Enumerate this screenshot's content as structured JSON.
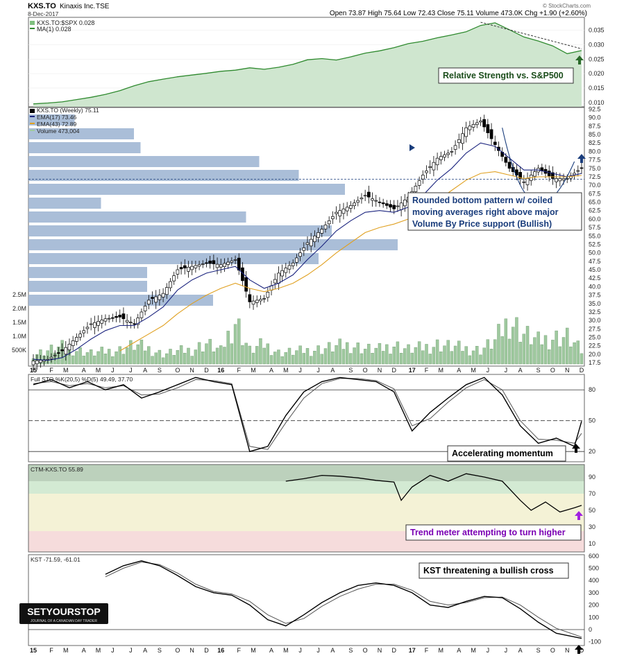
{
  "header": {
    "ticker": "KXS.TO",
    "company": "Kinaxis Inc.",
    "exchange": "TSE",
    "date": "8-Dec-2017",
    "ohlc": "Open 73.87  High 75.64  Low 72.43  Close 75.11  Volume 473.0K  Chg +1.90 (+2.60%)",
    "watermark": "© StockCharts.com"
  },
  "colors": {
    "rs_fill": "#cfe6cf",
    "rs_line": "#2f8a2f",
    "ema17": "#1a237e",
    "ema43": "#e0a020",
    "volume": "#9fc99f",
    "vbp": "#9bb3d1",
    "ctm_zone1": "#bcd1bc",
    "ctm_zone2": "#d3ead3",
    "ctm_zone3": "#f4f2d6",
    "ctm_zone4": "#f6dcdc"
  },
  "chart_data": [
    {
      "type": "area",
      "name": "relative-strength",
      "legend": [
        "KXS.TO:$SPX 0.028",
        "MA(1) 0.028"
      ],
      "y_ticks": [
        "0.035",
        "0.030",
        "0.025",
        "0.020",
        "0.015",
        "0.010"
      ],
      "ylim": [
        0.0085,
        0.0395
      ],
      "x": [
        0,
        4,
        8,
        12,
        16,
        20,
        24,
        28,
        32,
        36,
        40,
        44,
        48,
        52,
        56,
        60,
        64,
        68,
        72,
        76,
        80,
        84,
        88,
        92,
        96,
        100,
        104,
        108,
        112,
        116,
        120,
        124,
        128,
        132,
        136,
        140,
        144,
        148,
        152
      ],
      "values": [
        0.0095,
        0.0098,
        0.0102,
        0.011,
        0.0118,
        0.0128,
        0.0141,
        0.0158,
        0.0172,
        0.0181,
        0.0189,
        0.0195,
        0.0201,
        0.0208,
        0.0212,
        0.022,
        0.0215,
        0.0222,
        0.0232,
        0.0248,
        0.0252,
        0.0247,
        0.0258,
        0.0271,
        0.0279,
        0.029,
        0.0304,
        0.0312,
        0.0324,
        0.0334,
        0.0345,
        0.0367,
        0.0376,
        0.0352,
        0.0327,
        0.0313,
        0.0296,
        0.0269,
        0.028
      ],
      "annotation": "Relative Strength vs. S&P500"
    },
    {
      "type": "candlestick",
      "name": "price",
      "legend": [
        "KXS.TO (Weekly) 75.11",
        "EMA(17) 73.46",
        "EMA(43) 72.89",
        "Volume 473,004"
      ],
      "y_ticks": [
        "92.5",
        "90.0",
        "87.5",
        "85.0",
        "82.5",
        "80.0",
        "77.5",
        "75.0",
        "72.5",
        "70.0",
        "67.5",
        "65.0",
        "62.5",
        "60.0",
        "57.5",
        "55.0",
        "52.5",
        "50.0",
        "47.5",
        "45.0",
        "42.5",
        "40.0",
        "37.5",
        "35.0",
        "32.5",
        "30.0",
        "27.5",
        "25.0",
        "22.5",
        "20.0",
        "17.5"
      ],
      "volume_ticks": [
        "2.5M",
        "2.0M",
        "1.5M",
        "1.0M",
        "500K"
      ],
      "ylim": [
        16.5,
        93
      ],
      "x": [
        0,
        4,
        8,
        12,
        16,
        20,
        24,
        28,
        32,
        36,
        40,
        44,
        48,
        52,
        56,
        60,
        64,
        68,
        72,
        76,
        80,
        84,
        88,
        92,
        96,
        100,
        104,
        108,
        112,
        116,
        120,
        124,
        128,
        132,
        136,
        140,
        144,
        148,
        152
      ],
      "close": [
        18.0,
        18.5,
        21.0,
        25.0,
        29.0,
        30.5,
        31.0,
        29.0,
        36.0,
        38.0,
        45.0,
        46.0,
        47.0,
        46.5,
        48.0,
        35.5,
        36.5,
        44.0,
        47.0,
        53.0,
        57.0,
        62.0,
        64.0,
        67.0,
        65.0,
        63.0,
        66.5,
        73.0,
        78.0,
        80.0,
        87.0,
        89.0,
        82.0,
        75.0,
        71.0,
        75.0,
        72.0,
        72.0,
        75.1
      ],
      "ema17": [
        18.5,
        18.2,
        19.0,
        21.5,
        24.5,
        27.0,
        28.5,
        28.5,
        31.0,
        34.0,
        39.0,
        42.0,
        44.0,
        45.0,
        46.0,
        42.0,
        39.5,
        41.0,
        43.5,
        48.0,
        52.0,
        56.5,
        59.5,
        62.0,
        62.5,
        62.0,
        63.5,
        67.0,
        71.5,
        75.0,
        79.5,
        82.5,
        81.5,
        78.0,
        74.5,
        74.5,
        73.5,
        72.5,
        73.5
      ],
      "ema43_x": [
        24,
        28,
        32,
        36,
        40,
        44,
        48,
        52,
        56,
        60,
        64,
        68,
        72,
        76,
        80,
        84,
        88,
        92,
        96,
        100,
        104,
        108,
        112,
        116,
        120,
        124,
        128,
        132,
        136,
        140,
        144,
        148,
        152
      ],
      "ema43": [
        21.0,
        23.5,
        26.0,
        28.5,
        32.0,
        35.0,
        37.5,
        39.5,
        41.0,
        39.5,
        38.5,
        39.5,
        41.0,
        43.5,
        46.5,
        50.0,
        53.0,
        56.0,
        57.5,
        58.5,
        60.0,
        62.5,
        65.5,
        68.5,
        71.5,
        73.5,
        74.0,
        73.0,
        72.0,
        72.5,
        72.5,
        72.5,
        72.9
      ],
      "volume_k": [
        350,
        500,
        620,
        520,
        400,
        460,
        520,
        700,
        560,
        360,
        470,
        520,
        760,
        480,
        1620,
        500,
        720,
        420,
        450,
        500,
        560,
        640,
        700,
        560,
        540,
        700,
        540,
        600,
        720,
        640,
        560,
        520,
        840,
        1640,
        1120,
        840,
        980,
        1000,
        473
      ],
      "volume_ylim": [
        0,
        3000
      ],
      "vbp_k": [
        70,
        160,
        170,
        350,
        410,
        480,
        110,
        330,
        460,
        560,
        440,
        180,
        180,
        280
      ],
      "support_line": 71.8,
      "annotation": "Rounded bottom pattern w/ coiled moving averages right above major Volume By Price support (Bullish)"
    },
    {
      "type": "line",
      "name": "full-stochastics",
      "legend": "Full STO %K(20,5) %D(5) 49.49, 37.70",
      "y_ticks": [
        "80",
        "50",
        "20"
      ],
      "ylim": [
        10,
        95
      ],
      "x": [
        0,
        5,
        10,
        15,
        20,
        25,
        30,
        35,
        40,
        45,
        50,
        55,
        60,
        65,
        70,
        75,
        80,
        85,
        90,
        95,
        100,
        105,
        110,
        115,
        120,
        125,
        130,
        135,
        140,
        145,
        150,
        152
      ],
      "k": [
        85,
        90,
        82,
        88,
        80,
        85,
        72,
        78,
        85,
        92,
        88,
        85,
        20,
        25,
        55,
        78,
        88,
        92,
        90,
        88,
        78,
        40,
        58,
        72,
        85,
        92,
        75,
        45,
        28,
        33,
        25,
        49.49
      ],
      "d": [
        86,
        88,
        84,
        86,
        82,
        84,
        75,
        76,
        82,
        90,
        89,
        86,
        25,
        22,
        48,
        72,
        86,
        91,
        91,
        89,
        81,
        45,
        52,
        68,
        82,
        90,
        80,
        50,
        32,
        31,
        28,
        37.7
      ],
      "annotation": "Accelerating momentum"
    },
    {
      "type": "line",
      "name": "ctm-trend-meter",
      "legend": "CTM-KXS.TO 55.89",
      "y_ticks": [
        "90",
        "70",
        "50",
        "30",
        "10"
      ],
      "ylim": [
        0,
        105
      ],
      "x": [
        70,
        75,
        80,
        85,
        90,
        95,
        100,
        102,
        105,
        110,
        115,
        120,
        125,
        130,
        135,
        138,
        142,
        146,
        150,
        152
      ],
      "values": [
        85,
        88,
        92,
        91,
        89,
        86,
        84,
        62,
        78,
        92,
        85,
        94,
        90,
        85,
        62,
        50,
        60,
        48,
        53,
        55.89
      ],
      "annotation": "Trend meter attempting to turn higher"
    },
    {
      "type": "line",
      "name": "kst",
      "legend": "KST -71.59, -61.01",
      "y_ticks": [
        "600",
        "500",
        "400",
        "300",
        "200",
        "100",
        "0",
        "-100"
      ],
      "ylim": [
        -130,
        610
      ],
      "x": [
        20,
        25,
        30,
        35,
        40,
        45,
        50,
        55,
        60,
        65,
        70,
        75,
        80,
        85,
        90,
        95,
        100,
        105,
        110,
        115,
        120,
        125,
        130,
        135,
        140,
        145,
        150,
        152
      ],
      "kst": [
        450,
        520,
        560,
        520,
        440,
        350,
        300,
        280,
        200,
        80,
        30,
        120,
        220,
        300,
        360,
        380,
        360,
        300,
        200,
        180,
        230,
        270,
        260,
        170,
        60,
        -30,
        -60,
        -71.59
      ],
      "signal": [
        430,
        500,
        550,
        530,
        460,
        370,
        310,
        290,
        230,
        120,
        50,
        90,
        190,
        270,
        330,
        370,
        370,
        320,
        230,
        200,
        220,
        260,
        265,
        200,
        100,
        10,
        -40,
        -61.01
      ],
      "annotation": "KST threatening a bullish cross"
    }
  ],
  "x_axis": {
    "ticks": [
      {
        "label": "15",
        "bold": true,
        "pos": 0
      },
      {
        "label": "F",
        "pos": 5
      },
      {
        "label": "M",
        "pos": 9
      },
      {
        "label": "A",
        "pos": 14
      },
      {
        "label": "M",
        "pos": 18
      },
      {
        "label": "J",
        "pos": 22
      },
      {
        "label": "J",
        "pos": 27
      },
      {
        "label": "A",
        "pos": 31
      },
      {
        "label": "S",
        "pos": 35
      },
      {
        "label": "O",
        "pos": 40
      },
      {
        "label": "N",
        "pos": 44
      },
      {
        "label": "D",
        "pos": 48
      },
      {
        "label": "16",
        "bold": true,
        "pos": 52
      },
      {
        "label": "F",
        "pos": 57
      },
      {
        "label": "M",
        "pos": 61
      },
      {
        "label": "A",
        "pos": 66
      },
      {
        "label": "M",
        "pos": 70
      },
      {
        "label": "J",
        "pos": 74
      },
      {
        "label": "J",
        "pos": 79
      },
      {
        "label": "A",
        "pos": 83
      },
      {
        "label": "S",
        "pos": 88
      },
      {
        "label": "O",
        "pos": 92
      },
      {
        "label": "N",
        "pos": 96
      },
      {
        "label": "D",
        "pos": 100
      },
      {
        "label": "17",
        "bold": true,
        "pos": 105
      },
      {
        "label": "F",
        "pos": 109
      },
      {
        "label": "M",
        "pos": 113
      },
      {
        "label": "A",
        "pos": 118
      },
      {
        "label": "M",
        "pos": 122
      },
      {
        "label": "J",
        "pos": 126
      },
      {
        "label": "J",
        "pos": 131
      },
      {
        "label": "A",
        "pos": 135
      },
      {
        "label": "S",
        "pos": 140
      },
      {
        "label": "O",
        "pos": 144
      },
      {
        "label": "N",
        "pos": 148
      },
      {
        "label": "D",
        "pos": 152
      }
    ]
  },
  "logo": {
    "text": "SETYOURSTOP",
    "tagline": "JOURNAL OF A CANADIAN DAY TRADER"
  }
}
